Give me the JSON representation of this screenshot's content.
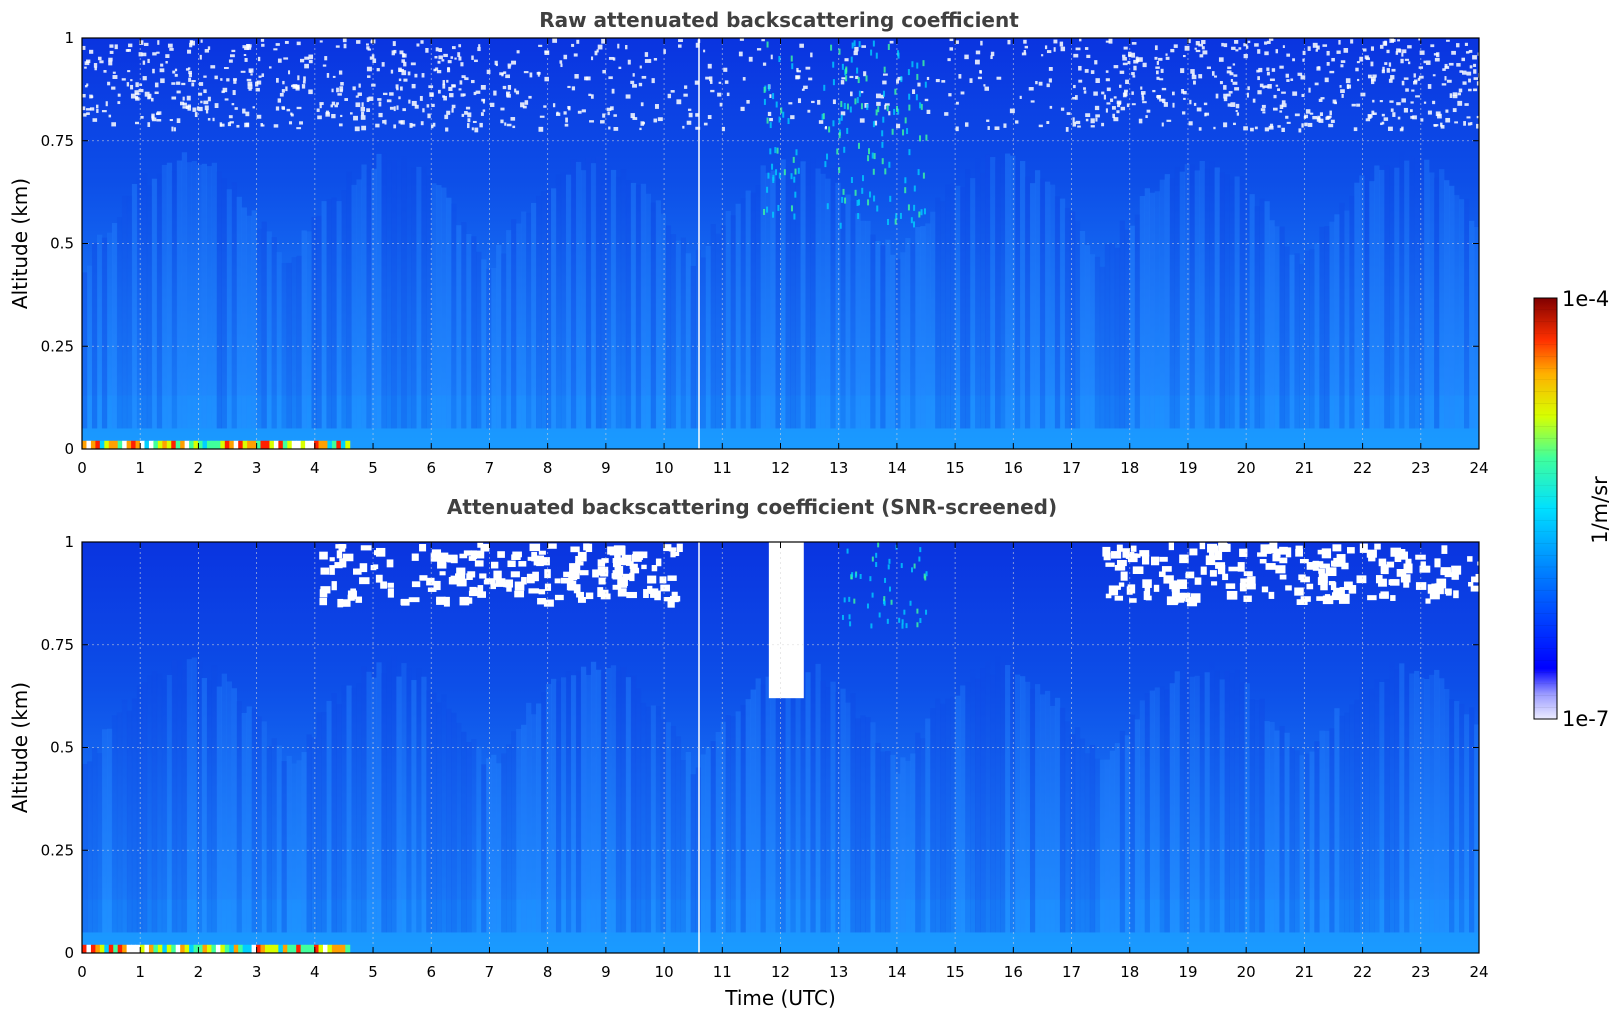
{
  "chart_data": [
    {
      "type": "heatmap",
      "title": "Raw attenuated backscattering coefficient",
      "xlabel": "",
      "ylabel": "Altitude (km)",
      "xlim": [
        0,
        24
      ],
      "ylim": [
        0,
        1
      ],
      "x_ticks": [
        "0",
        "1",
        "2",
        "3",
        "4",
        "5",
        "6",
        "7",
        "8",
        "9",
        "10",
        "11",
        "12",
        "13",
        "14",
        "15",
        "16",
        "17",
        "18",
        "19",
        "20",
        "21",
        "22",
        "23",
        "24"
      ],
      "y_ticks": [
        "0",
        "0.25",
        "0.5",
        "0.75",
        "1"
      ],
      "grid": true,
      "screened": false,
      "features": {
        "surface_high_backscatter_hours": [
          0,
          4.6
        ],
        "data_gap_hour": 10.6,
        "noisy_upper_layer_km": [
          0.75,
          1.0
        ],
        "turbulent_columns_hours": [
          12.0,
          13.0,
          13.6,
          14.2
        ]
      }
    },
    {
      "type": "heatmap",
      "title": "Attenuated backscattering coefficient (SNR-screened)",
      "xlabel": "Time (UTC)",
      "ylabel": "Altitude (km)",
      "xlim": [
        0,
        24
      ],
      "ylim": [
        0,
        1
      ],
      "x_ticks": [
        "0",
        "1",
        "2",
        "3",
        "4",
        "5",
        "6",
        "7",
        "8",
        "9",
        "10",
        "11",
        "12",
        "13",
        "14",
        "15",
        "16",
        "17",
        "18",
        "19",
        "20",
        "21",
        "22",
        "23",
        "24"
      ],
      "y_ticks": [
        "0",
        "0.25",
        "0.5",
        "0.75",
        "1"
      ],
      "grid": true,
      "screened": true,
      "features": {
        "surface_high_backscatter_hours": [
          0,
          4.6
        ],
        "data_gap_hour": 10.6,
        "screened_column_hours": [
          11.8,
          12.4
        ],
        "screened_column_min_km": 0.62
      }
    }
  ],
  "colorbar": {
    "label": "1/m/sr",
    "max_label": "1e-4",
    "min_label": "1e-7",
    "scale": "log",
    "range": [
      1e-07,
      0.0001
    ],
    "colormap": "jet"
  }
}
